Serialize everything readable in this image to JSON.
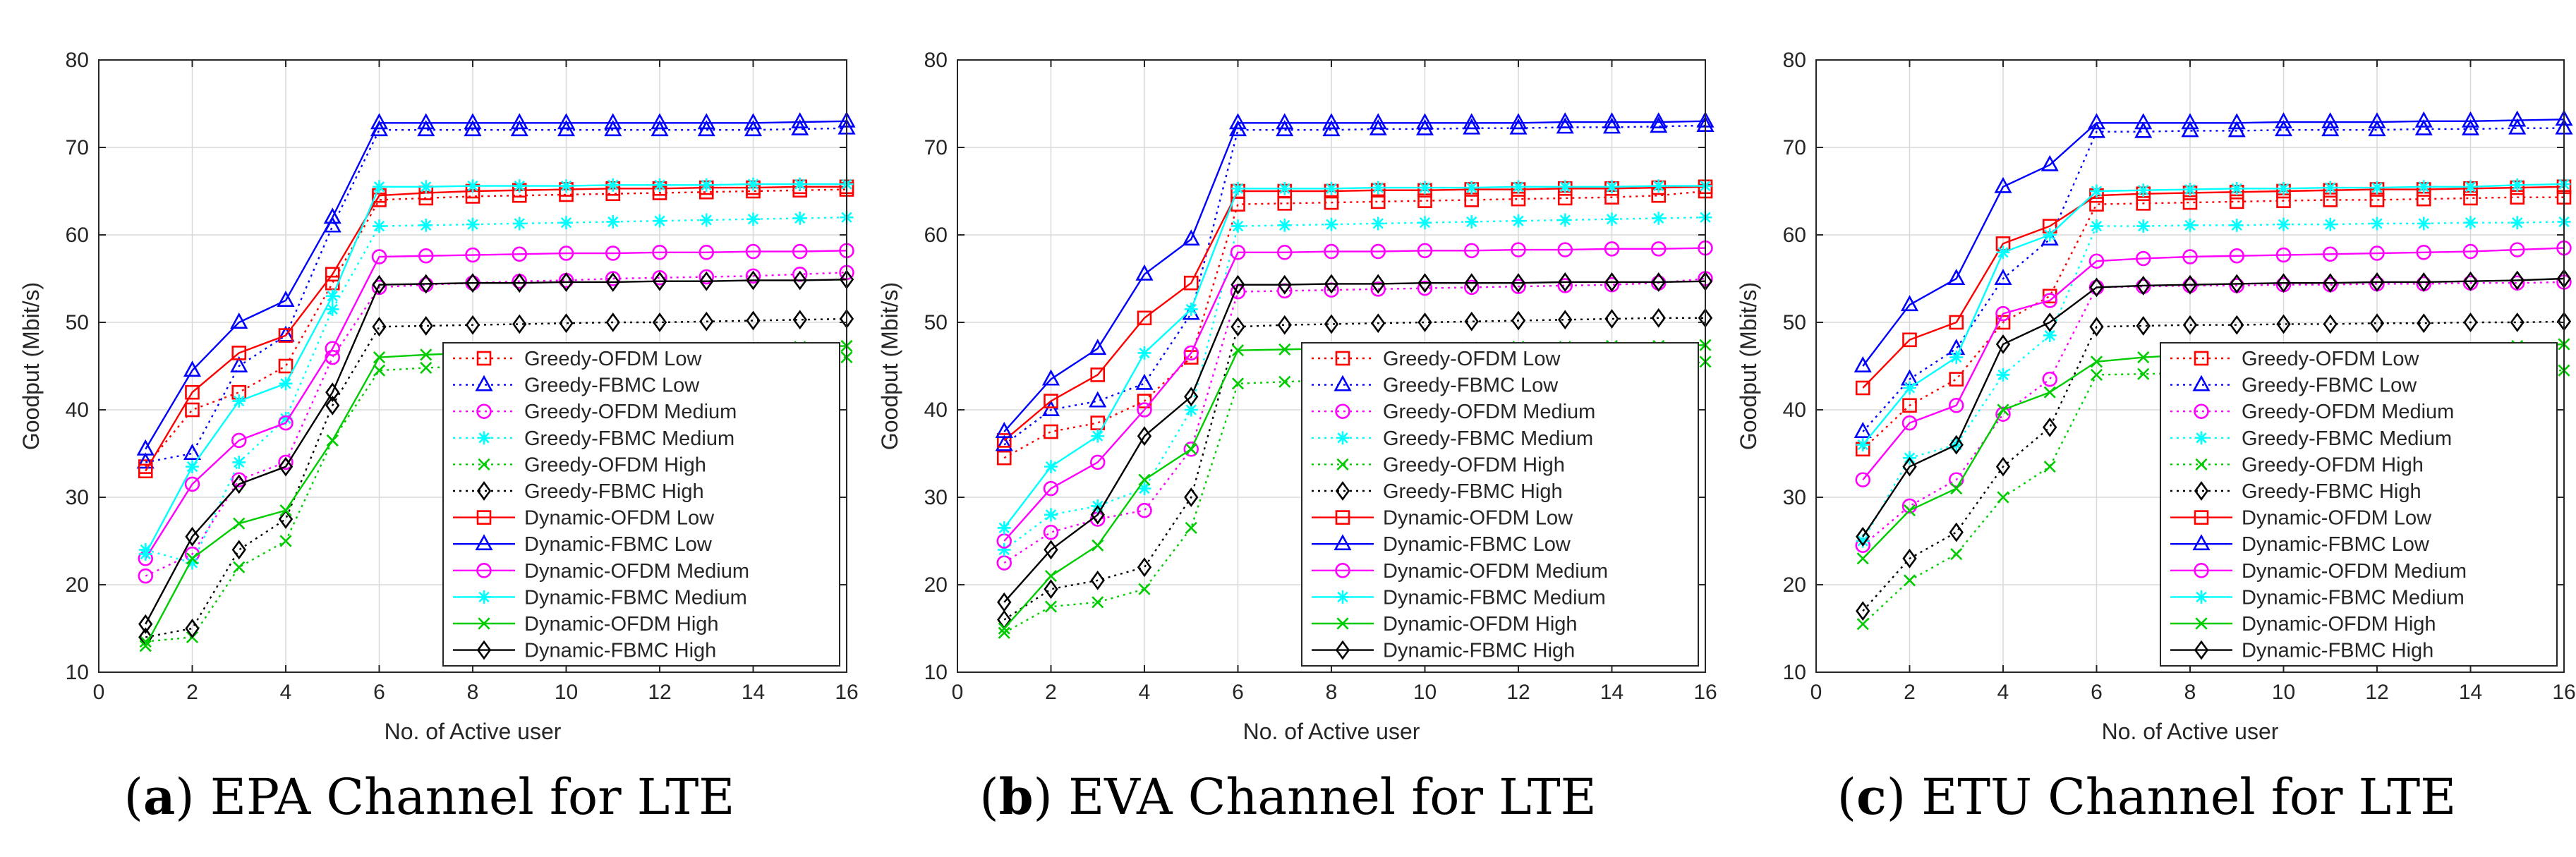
{
  "chart_data": [
    {
      "type": "line",
      "caption_letter": "a",
      "caption_text": "EPA Channel for LTE",
      "xlabel": "No. of Active user",
      "ylabel": "Goodput (Mbit/s)",
      "xlim": [
        0,
        16
      ],
      "ylim": [
        10,
        80
      ],
      "xticks": [
        0,
        2,
        4,
        6,
        8,
        10,
        12,
        14,
        16
      ],
      "yticks": [
        10,
        20,
        30,
        40,
        50,
        60,
        70,
        80
      ],
      "grid": true,
      "legend_position": "bottom-right",
      "x": [
        1,
        2,
        3,
        4,
        5,
        6,
        7,
        8,
        9,
        10,
        11,
        12,
        13,
        14,
        15,
        16
      ],
      "series": [
        {
          "name": "Greedy-OFDM Low",
          "color": "#ff0000",
          "dash": "dotted",
          "marker": "square",
          "values": [
            33.5,
            40,
            42,
            45,
            54.5,
            64,
            64.2,
            64.4,
            64.5,
            64.6,
            64.7,
            64.8,
            64.9,
            65,
            65.1,
            65.2
          ]
        },
        {
          "name": "Greedy-FBMC Low",
          "color": "#0000ff",
          "dash": "dotted",
          "marker": "triangle",
          "values": [
            34,
            35,
            45,
            48.5,
            61,
            72,
            72,
            72,
            72,
            72,
            72,
            72,
            72,
            72,
            72.1,
            72.2
          ]
        },
        {
          "name": "Greedy-OFDM Medium",
          "color": "#ff00ff",
          "dash": "dotted",
          "marker": "circle",
          "values": [
            21,
            23.5,
            32,
            34,
            46,
            54,
            54.3,
            54.5,
            54.7,
            54.8,
            55,
            55.1,
            55.2,
            55.3,
            55.5,
            55.7
          ]
        },
        {
          "name": "Greedy-FBMC Medium",
          "color": "#00ffff",
          "dash": "dotted",
          "marker": "asterisk",
          "values": [
            24,
            22.5,
            34,
            39,
            51.5,
            61,
            61.1,
            61.2,
            61.3,
            61.4,
            61.5,
            61.6,
            61.7,
            61.8,
            61.9,
            62
          ]
        },
        {
          "name": "Greedy-OFDM High",
          "color": "#00cc00",
          "dash": "dotted",
          "marker": "x",
          "values": [
            13.5,
            14,
            22,
            25,
            36.5,
            44.5,
            44.8,
            45,
            45.2,
            45.4,
            45.5,
            45.6,
            45.7,
            45.8,
            45.9,
            46
          ]
        },
        {
          "name": "Greedy-FBMC High",
          "color": "#000000",
          "dash": "dotted",
          "marker": "diamond",
          "values": [
            14,
            15,
            24,
            27.5,
            40.5,
            49.5,
            49.6,
            49.7,
            49.8,
            49.9,
            50,
            50,
            50.1,
            50.2,
            50.3,
            50.4
          ]
        },
        {
          "name": "Dynamic-OFDM Low",
          "color": "#ff0000",
          "dash": "solid",
          "marker": "square",
          "values": [
            33,
            42,
            46.5,
            48.5,
            55.5,
            64.5,
            64.8,
            65,
            65.1,
            65.2,
            65.3,
            65.3,
            65.4,
            65.4,
            65.5,
            65.5
          ]
        },
        {
          "name": "Dynamic-FBMC Low",
          "color": "#0000ff",
          "dash": "solid",
          "marker": "triangle",
          "values": [
            35.5,
            44.5,
            50,
            52.5,
            62,
            72.8,
            72.8,
            72.8,
            72.8,
            72.8,
            72.8,
            72.8,
            72.8,
            72.8,
            72.9,
            73
          ]
        },
        {
          "name": "Dynamic-OFDM Medium",
          "color": "#ff00ff",
          "dash": "solid",
          "marker": "circle",
          "values": [
            23,
            31.5,
            36.5,
            38.5,
            47,
            57.5,
            57.6,
            57.7,
            57.8,
            57.9,
            57.9,
            58,
            58,
            58.1,
            58.1,
            58.2
          ]
        },
        {
          "name": "Dynamic-FBMC Medium",
          "color": "#00ffff",
          "dash": "solid",
          "marker": "asterisk",
          "values": [
            23.5,
            33.5,
            41,
            43,
            53,
            65.5,
            65.5,
            65.6,
            65.6,
            65.6,
            65.7,
            65.7,
            65.7,
            65.8,
            65.8,
            65.8
          ]
        },
        {
          "name": "Dynamic-OFDM High",
          "color": "#00cc00",
          "dash": "solid",
          "marker": "x",
          "values": [
            13,
            23,
            27,
            28.5,
            36.5,
            46,
            46.3,
            46.5,
            46.6,
            46.7,
            46.8,
            46.9,
            47,
            47.1,
            47.2,
            47.3
          ]
        },
        {
          "name": "Dynamic-FBMC High",
          "color": "#000000",
          "dash": "solid",
          "marker": "diamond",
          "values": [
            15.5,
            25.5,
            31.5,
            33.5,
            42,
            54.3,
            54.4,
            54.5,
            54.5,
            54.6,
            54.6,
            54.7,
            54.7,
            54.8,
            54.8,
            54.9
          ]
        }
      ]
    },
    {
      "type": "line",
      "caption_letter": "b",
      "caption_text": "EVA Channel for LTE",
      "xlabel": "No. of Active user",
      "ylabel": "Goodput (Mbit/s)",
      "xlim": [
        0,
        16
      ],
      "ylim": [
        10,
        80
      ],
      "xticks": [
        0,
        2,
        4,
        6,
        8,
        10,
        12,
        14,
        16
      ],
      "yticks": [
        10,
        20,
        30,
        40,
        50,
        60,
        70,
        80
      ],
      "grid": true,
      "legend_position": "bottom-right",
      "x": [
        1,
        2,
        3,
        4,
        5,
        6,
        7,
        8,
        9,
        10,
        11,
        12,
        13,
        14,
        15,
        16
      ],
      "series": [
        {
          "name": "Greedy-OFDM Low",
          "color": "#ff0000",
          "dash": "dotted",
          "marker": "square",
          "values": [
            34.5,
            37.5,
            38.5,
            41,
            46,
            63.5,
            63.6,
            63.7,
            63.8,
            63.9,
            64,
            64.1,
            64.2,
            64.3,
            64.5,
            65
          ]
        },
        {
          "name": "Greedy-FBMC Low",
          "color": "#0000ff",
          "dash": "dotted",
          "marker": "triangle",
          "values": [
            36,
            40,
            41,
            43,
            51,
            72,
            72,
            72,
            72.1,
            72.1,
            72.2,
            72.2,
            72.3,
            72.3,
            72.4,
            72.5
          ]
        },
        {
          "name": "Greedy-OFDM Medium",
          "color": "#ff00ff",
          "dash": "dotted",
          "marker": "circle",
          "values": [
            22.5,
            26,
            27.5,
            28.5,
            35.5,
            53.5,
            53.6,
            53.7,
            53.8,
            53.9,
            54,
            54.1,
            54.2,
            54.3,
            54.5,
            55
          ]
        },
        {
          "name": "Greedy-FBMC Medium",
          "color": "#00ffff",
          "dash": "dotted",
          "marker": "asterisk",
          "values": [
            24,
            28,
            29,
            31,
            40,
            61,
            61.1,
            61.2,
            61.3,
            61.4,
            61.5,
            61.6,
            61.7,
            61.8,
            61.9,
            62
          ]
        },
        {
          "name": "Greedy-OFDM High",
          "color": "#00cc00",
          "dash": "dotted",
          "marker": "x",
          "values": [
            14.5,
            17.5,
            18,
            19.5,
            26.5,
            43,
            43.2,
            43.4,
            43.6,
            43.8,
            44,
            44.2,
            44.4,
            44.6,
            44.8,
            45.5
          ]
        },
        {
          "name": "Greedy-FBMC High",
          "color": "#000000",
          "dash": "dotted",
          "marker": "diamond",
          "values": [
            16,
            19.5,
            20.5,
            22,
            30,
            49.5,
            49.7,
            49.8,
            49.9,
            50,
            50.1,
            50.2,
            50.3,
            50.4,
            50.5,
            50.5
          ]
        },
        {
          "name": "Dynamic-OFDM Low",
          "color": "#ff0000",
          "dash": "solid",
          "marker": "square",
          "values": [
            36.5,
            41,
            44,
            50.5,
            54.5,
            65,
            65,
            65,
            65.1,
            65.1,
            65.2,
            65.2,
            65.3,
            65.3,
            65.4,
            65.5
          ]
        },
        {
          "name": "Dynamic-FBMC Low",
          "color": "#0000ff",
          "dash": "solid",
          "marker": "triangle",
          "values": [
            37.5,
            43.5,
            47,
            55.5,
            59.5,
            72.8,
            72.8,
            72.8,
            72.8,
            72.8,
            72.8,
            72.8,
            72.9,
            72.9,
            72.9,
            73
          ]
        },
        {
          "name": "Dynamic-OFDM Medium",
          "color": "#ff00ff",
          "dash": "solid",
          "marker": "circle",
          "values": [
            25,
            31,
            34,
            40,
            46.5,
            58,
            58,
            58.1,
            58.1,
            58.2,
            58.2,
            58.3,
            58.3,
            58.4,
            58.4,
            58.5
          ]
        },
        {
          "name": "Dynamic-FBMC Medium",
          "color": "#00ffff",
          "dash": "solid",
          "marker": "asterisk",
          "values": [
            26.5,
            33.5,
            37,
            46.5,
            51.5,
            65.3,
            65.3,
            65.3,
            65.4,
            65.4,
            65.4,
            65.5,
            65.5,
            65.5,
            65.6,
            65.6
          ]
        },
        {
          "name": "Dynamic-OFDM High",
          "color": "#00cc00",
          "dash": "solid",
          "marker": "x",
          "values": [
            15,
            21,
            24.5,
            32,
            35.5,
            46.8,
            46.9,
            47,
            47,
            47.1,
            47.1,
            47.2,
            47.2,
            47.3,
            47.3,
            47.4
          ]
        },
        {
          "name": "Dynamic-FBMC High",
          "color": "#000000",
          "dash": "solid",
          "marker": "diamond",
          "values": [
            18,
            24,
            28,
            37,
            41.5,
            54.3,
            54.3,
            54.4,
            54.4,
            54.5,
            54.5,
            54.5,
            54.6,
            54.6,
            54.6,
            54.7
          ]
        }
      ]
    },
    {
      "type": "line",
      "caption_letter": "c",
      "caption_text": "ETU Channel for LTE",
      "xlabel": "No. of Active user",
      "ylabel": "Goodput (Mbit/s)",
      "xlim": [
        0,
        16
      ],
      "ylim": [
        10,
        80
      ],
      "xticks": [
        0,
        2,
        4,
        6,
        8,
        10,
        12,
        14,
        16
      ],
      "yticks": [
        10,
        20,
        30,
        40,
        50,
        60,
        70,
        80
      ],
      "grid": true,
      "legend_position": "bottom-right",
      "x": [
        1,
        2,
        3,
        4,
        5,
        6,
        7,
        8,
        9,
        10,
        11,
        12,
        13,
        14,
        15,
        16
      ],
      "series": [
        {
          "name": "Greedy-OFDM Low",
          "color": "#ff0000",
          "dash": "dotted",
          "marker": "square",
          "values": [
            35.5,
            40.5,
            43.5,
            50,
            53,
            63.5,
            63.6,
            63.7,
            63.8,
            63.9,
            64,
            64,
            64.1,
            64.2,
            64.3,
            64.3
          ]
        },
        {
          "name": "Greedy-FBMC Low",
          "color": "#0000ff",
          "dash": "dotted",
          "marker": "triangle",
          "values": [
            37.5,
            43.5,
            47,
            55,
            59.5,
            71.8,
            71.8,
            71.9,
            71.9,
            72,
            72,
            72,
            72.1,
            72.1,
            72.2,
            72.2
          ]
        },
        {
          "name": "Greedy-OFDM Medium",
          "color": "#ff00ff",
          "dash": "dotted",
          "marker": "circle",
          "values": [
            24.5,
            29,
            32,
            39.5,
            43.5,
            54,
            54.1,
            54.2,
            54.2,
            54.3,
            54.3,
            54.4,
            54.4,
            54.5,
            54.5,
            54.6
          ]
        },
        {
          "name": "Greedy-FBMC Medium",
          "color": "#00ffff",
          "dash": "dotted",
          "marker": "asterisk",
          "values": [
            25,
            34.5,
            36,
            44,
            48.5,
            61,
            61,
            61.1,
            61.1,
            61.2,
            61.2,
            61.3,
            61.3,
            61.4,
            61.4,
            61.5
          ]
        },
        {
          "name": "Greedy-OFDM High",
          "color": "#00cc00",
          "dash": "dotted",
          "marker": "x",
          "values": [
            15.5,
            20.5,
            23.5,
            30,
            33.5,
            44,
            44.1,
            44.2,
            44.2,
            44.3,
            44.3,
            44.4,
            44.4,
            44.4,
            44.5,
            44.5
          ]
        },
        {
          "name": "Greedy-FBMC High",
          "color": "#000000",
          "dash": "dotted",
          "marker": "diamond",
          "values": [
            17,
            23,
            26,
            33.5,
            38,
            49.5,
            49.6,
            49.7,
            49.7,
            49.8,
            49.8,
            49.9,
            49.9,
            50,
            50,
            50.1
          ]
        },
        {
          "name": "Dynamic-OFDM Low",
          "color": "#ff0000",
          "dash": "solid",
          "marker": "square",
          "values": [
            42.5,
            48,
            50,
            59,
            61,
            64.5,
            64.7,
            64.8,
            64.9,
            65,
            65.1,
            65.2,
            65.2,
            65.3,
            65.4,
            65.5
          ]
        },
        {
          "name": "Dynamic-FBMC Low",
          "color": "#0000ff",
          "dash": "solid",
          "marker": "triangle",
          "values": [
            45,
            52,
            55,
            65.5,
            68,
            72.8,
            72.8,
            72.8,
            72.8,
            72.9,
            72.9,
            72.9,
            73,
            73,
            73.1,
            73.2
          ]
        },
        {
          "name": "Dynamic-OFDM Medium",
          "color": "#ff00ff",
          "dash": "solid",
          "marker": "circle",
          "values": [
            32,
            38.5,
            40.5,
            51,
            52.5,
            57,
            57.3,
            57.5,
            57.6,
            57.7,
            57.8,
            57.9,
            58,
            58.1,
            58.3,
            58.5
          ]
        },
        {
          "name": "Dynamic-FBMC Medium",
          "color": "#00ffff",
          "dash": "solid",
          "marker": "asterisk",
          "values": [
            36,
            42.5,
            46,
            58,
            60,
            65,
            65.1,
            65.2,
            65.3,
            65.3,
            65.4,
            65.4,
            65.5,
            65.5,
            65.7,
            65.8
          ]
        },
        {
          "name": "Dynamic-OFDM High",
          "color": "#00cc00",
          "dash": "solid",
          "marker": "x",
          "values": [
            23,
            28.5,
            31,
            40,
            42,
            45.5,
            46,
            46.3,
            46.5,
            46.6,
            46.7,
            46.8,
            46.9,
            47,
            47.3,
            47.5
          ]
        },
        {
          "name": "Dynamic-FBMC High",
          "color": "#000000",
          "dash": "solid",
          "marker": "diamond",
          "values": [
            25.5,
            33.5,
            36,
            47.5,
            50,
            54,
            54.2,
            54.3,
            54.4,
            54.5,
            54.5,
            54.6,
            54.6,
            54.7,
            54.8,
            55
          ]
        }
      ]
    }
  ]
}
